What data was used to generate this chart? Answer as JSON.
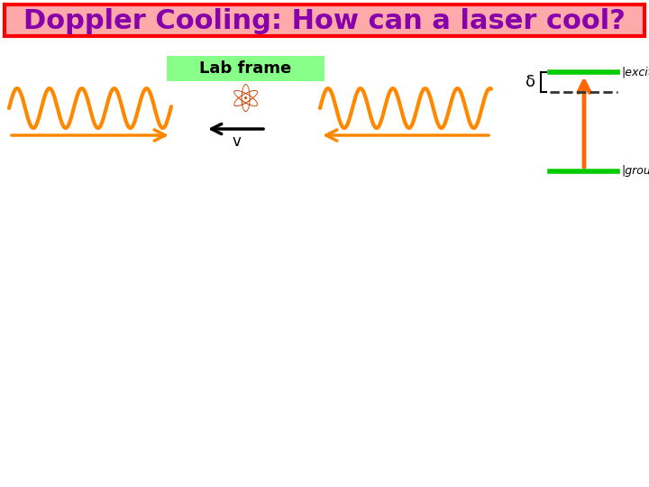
{
  "title": "Doppler Cooling: How can a laser cool?",
  "title_color": "#8800aa",
  "title_bg": "#ffaaaa",
  "title_border": "#ff0000",
  "lab_frame_label": "Lab frame",
  "lab_frame_bg": "#88ff88",
  "wave_color": "#ff8800",
  "arrow_color": "#ff8800",
  "atom_arrow_color": "#000000",
  "atom_v_label": "v",
  "energy_arrow_color": "#ff6600",
  "excited_label": "|excited",
  "ground_label": "|ground",
  "delta_label": "δ",
  "level_color": "#00cc00",
  "dashed_color": "#333333",
  "bg_color": "#ffffff"
}
